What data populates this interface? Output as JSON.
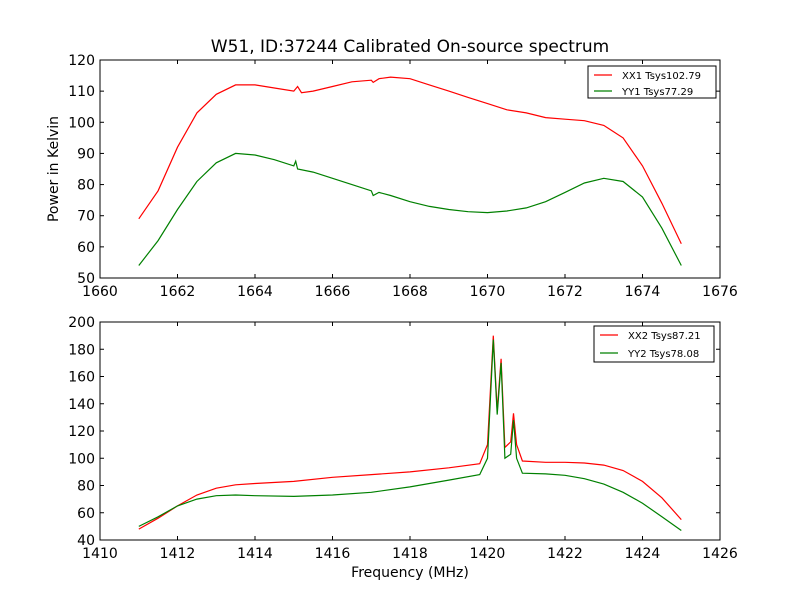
{
  "chart_data": [
    {
      "type": "line",
      "title": "W51, ID:37244 Calibrated On-source spectrum",
      "xlabel": "",
      "ylabel": "Power in Kelvin",
      "xlim": [
        1660,
        1676
      ],
      "ylim": [
        50,
        120
      ],
      "xticks": [
        "1660",
        "1662",
        "1664",
        "1666",
        "1668",
        "1670",
        "1672",
        "1674",
        "1676"
      ],
      "yticks": [
        "50",
        "60",
        "70",
        "80",
        "90",
        "100",
        "110",
        "120"
      ],
      "legend_position": "top-right",
      "series": [
        {
          "name": "XX1 Tsys102.79",
          "color": "#ff0000",
          "points": [
            [
              1661.0,
              69
            ],
            [
              1661.5,
              78
            ],
            [
              1662.0,
              92
            ],
            [
              1662.5,
              103
            ],
            [
              1663.0,
              109
            ],
            [
              1663.5,
              112
            ],
            [
              1664.0,
              112
            ],
            [
              1664.5,
              111
            ],
            [
              1665.0,
              110
            ],
            [
              1665.1,
              111.5
            ],
            [
              1665.2,
              109.5
            ],
            [
              1665.5,
              110
            ],
            [
              1666.0,
              111.5
            ],
            [
              1666.5,
              113
            ],
            [
              1667.0,
              113.5
            ],
            [
              1667.05,
              112.8
            ],
            [
              1667.2,
              114
            ],
            [
              1667.5,
              114.5
            ],
            [
              1668.0,
              114
            ],
            [
              1668.5,
              112
            ],
            [
              1669.0,
              110
            ],
            [
              1669.5,
              108
            ],
            [
              1670.0,
              106
            ],
            [
              1670.5,
              104
            ],
            [
              1671.0,
              103
            ],
            [
              1671.5,
              101.5
            ],
            [
              1672.0,
              101
            ],
            [
              1672.5,
              100.5
            ],
            [
              1673.0,
              99
            ],
            [
              1673.5,
              95
            ],
            [
              1674.0,
              86
            ],
            [
              1674.5,
              74
            ],
            [
              1675.0,
              61
            ]
          ]
        },
        {
          "name": "YY1 Tsys77.29",
          "color": "#008000",
          "points": [
            [
              1661.0,
              54
            ],
            [
              1661.5,
              62
            ],
            [
              1662.0,
              72
            ],
            [
              1662.5,
              81
            ],
            [
              1663.0,
              87
            ],
            [
              1663.5,
              90
            ],
            [
              1664.0,
              89.5
            ],
            [
              1664.5,
              88
            ],
            [
              1665.0,
              86
            ],
            [
              1665.05,
              87.5
            ],
            [
              1665.1,
              85
            ],
            [
              1665.5,
              84
            ],
            [
              1666.0,
              82
            ],
            [
              1666.5,
              80
            ],
            [
              1667.0,
              78
            ],
            [
              1667.05,
              76.5
            ],
            [
              1667.2,
              77.5
            ],
            [
              1667.5,
              76.5
            ],
            [
              1668.0,
              74.5
            ],
            [
              1668.5,
              73
            ],
            [
              1669.0,
              72
            ],
            [
              1669.5,
              71.3
            ],
            [
              1670.0,
              71
            ],
            [
              1670.5,
              71.5
            ],
            [
              1671.0,
              72.5
            ],
            [
              1671.5,
              74.5
            ],
            [
              1672.0,
              77.5
            ],
            [
              1672.5,
              80.5
            ],
            [
              1673.0,
              82
            ],
            [
              1673.5,
              81
            ],
            [
              1674.0,
              76
            ],
            [
              1674.5,
              66
            ],
            [
              1675.0,
              54
            ]
          ]
        }
      ]
    },
    {
      "type": "line",
      "title": "",
      "xlabel": "Frequency (MHz)",
      "ylabel": "",
      "xlim": [
        1410,
        1426
      ],
      "ylim": [
        40,
        200
      ],
      "xticks": [
        "1410",
        "1412",
        "1414",
        "1416",
        "1418",
        "1420",
        "1422",
        "1424",
        "1426"
      ],
      "yticks": [
        "40",
        "60",
        "80",
        "100",
        "120",
        "140",
        "160",
        "180",
        "200"
      ],
      "legend_position": "top-right",
      "series": [
        {
          "name": "XX2 Tsys87.21",
          "color": "#ff0000",
          "points": [
            [
              1411.0,
              48
            ],
            [
              1411.5,
              56
            ],
            [
              1412.0,
              65
            ],
            [
              1412.5,
              73
            ],
            [
              1413.0,
              78
            ],
            [
              1413.5,
              80.5
            ],
            [
              1414.0,
              81.5
            ],
            [
              1415.0,
              83
            ],
            [
              1416.0,
              86
            ],
            [
              1417.0,
              88
            ],
            [
              1418.0,
              90
            ],
            [
              1419.0,
              93
            ],
            [
              1419.8,
              96
            ],
            [
              1420.0,
              110
            ],
            [
              1420.15,
              190
            ],
            [
              1420.25,
              135
            ],
            [
              1420.35,
              173
            ],
            [
              1420.45,
              108
            ],
            [
              1420.6,
              112
            ],
            [
              1420.67,
              133
            ],
            [
              1420.75,
              110
            ],
            [
              1420.9,
              98
            ],
            [
              1421.5,
              97
            ],
            [
              1422.0,
              97
            ],
            [
              1422.5,
              96.5
            ],
            [
              1423.0,
              95
            ],
            [
              1423.5,
              91
            ],
            [
              1424.0,
              83
            ],
            [
              1424.5,
              71
            ],
            [
              1425.0,
              55
            ]
          ]
        },
        {
          "name": "YY2 Tsys78.08",
          "color": "#008000",
          "points": [
            [
              1411.0,
              50
            ],
            [
              1411.5,
              57
            ],
            [
              1412.0,
              65
            ],
            [
              1412.5,
              70
            ],
            [
              1413.0,
              72.5
            ],
            [
              1413.5,
              73
            ],
            [
              1414.0,
              72.5
            ],
            [
              1415.0,
              72
            ],
            [
              1416.0,
              73
            ],
            [
              1417.0,
              75
            ],
            [
              1418.0,
              79
            ],
            [
              1419.0,
              84
            ],
            [
              1419.8,
              88
            ],
            [
              1420.0,
              100
            ],
            [
              1420.15,
              187
            ],
            [
              1420.25,
              132
            ],
            [
              1420.35,
              170
            ],
            [
              1420.45,
              100
            ],
            [
              1420.6,
              103
            ],
            [
              1420.67,
              128
            ],
            [
              1420.75,
              100
            ],
            [
              1420.9,
              89
            ],
            [
              1421.5,
              88.5
            ],
            [
              1422.0,
              87.5
            ],
            [
              1422.5,
              85
            ],
            [
              1423.0,
              81
            ],
            [
              1423.5,
              75
            ],
            [
              1424.0,
              67
            ],
            [
              1424.5,
              57
            ],
            [
              1425.0,
              47
            ]
          ]
        }
      ]
    }
  ]
}
